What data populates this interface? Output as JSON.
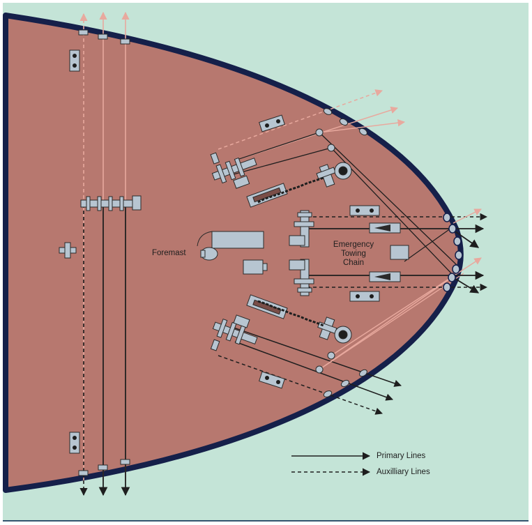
{
  "labels": {
    "foremast": "Foremast",
    "emergency_towing_chain": [
      "Emergency",
      "Towing",
      "Chain"
    ]
  },
  "legend": {
    "primary": "Primary Lines",
    "auxiliary": "Auxilliary Lines"
  },
  "colors": {
    "background": "#c4e4d7",
    "deck": "#b7786f",
    "hull_edge": "#15204a",
    "primary_line": "#1e1e1e",
    "auxiliary_line_pink": "#e8a99e",
    "fitting": "#b7c5d1",
    "bottom_rule": "#33536e"
  }
}
